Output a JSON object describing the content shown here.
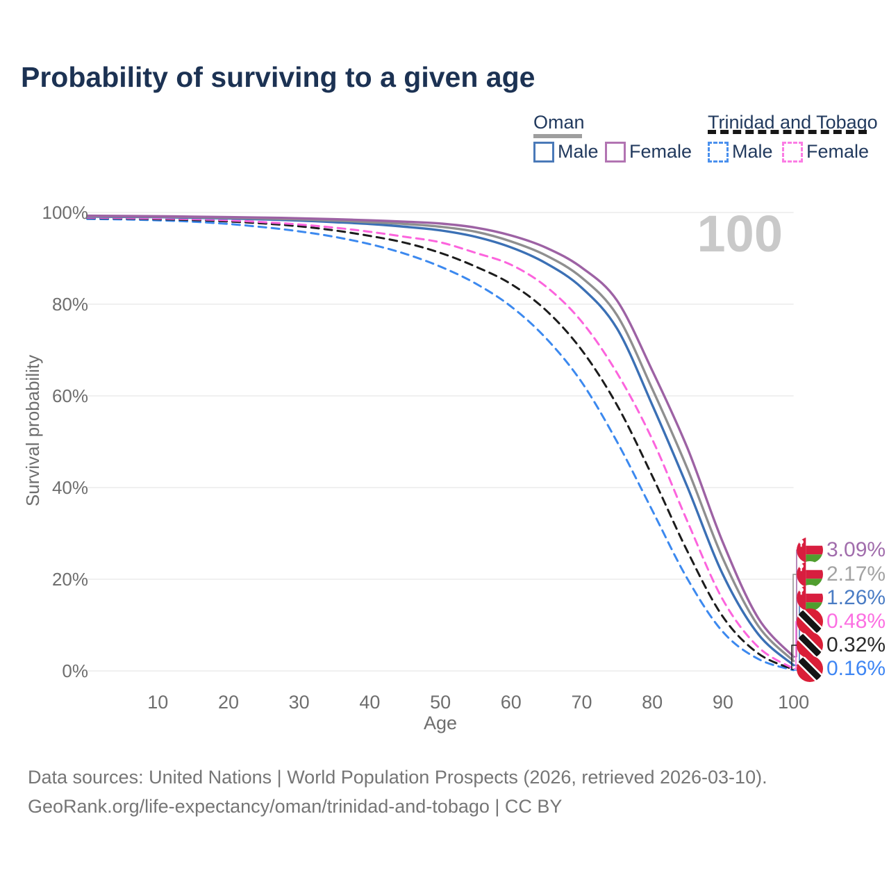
{
  "title": "Probability of surviving to a given age",
  "watermark": "100",
  "legend": {
    "oman": {
      "label": "Oman",
      "male": "Male",
      "female": "Female"
    },
    "tt": {
      "label": "Trinidad and Tobago",
      "male": "Male",
      "female": "Female"
    }
  },
  "axes": {
    "x_label": "Age",
    "y_label": "Survival probability",
    "y_ticks": [
      {
        "label": "100%",
        "value": 100
      },
      {
        "label": "80%",
        "value": 80
      },
      {
        "label": "60%",
        "value": 60
      },
      {
        "label": "40%",
        "value": 40
      },
      {
        "label": "20%",
        "value": 20
      },
      {
        "label": "0%",
        "value": 0
      }
    ],
    "x_ticks": [
      10,
      20,
      30,
      40,
      50,
      60,
      70,
      80,
      90,
      100
    ]
  },
  "chart_data": {
    "type": "line",
    "title": "Probability of surviving to a given age",
    "xlabel": "Age",
    "ylabel": "Survival probability",
    "x_range": [
      0,
      100
    ],
    "y_range_percent": [
      0,
      100
    ],
    "grid": "horizontal-only",
    "legend_position": "top-right",
    "x": [
      0,
      5,
      10,
      15,
      20,
      25,
      30,
      35,
      40,
      45,
      50,
      55,
      60,
      65,
      70,
      75,
      80,
      85,
      90,
      95,
      100
    ],
    "series": [
      {
        "name": "Oman Female",
        "style": "solid",
        "color": "#9d62a4",
        "values": [
          99.3,
          99.25,
          99.2,
          99.1,
          99.0,
          98.9,
          98.75,
          98.55,
          98.3,
          98.0,
          97.6,
          96.7,
          95.0,
          92.3,
          88.0,
          80.8,
          65.5,
          48.5,
          28.0,
          11.5,
          3.09
        ]
      },
      {
        "name": "Oman All",
        "style": "solid",
        "color": "#8f8f8f",
        "values": [
          99.2,
          99.15,
          99.1,
          99.0,
          98.85,
          98.7,
          98.5,
          98.25,
          97.9,
          97.5,
          96.9,
          95.8,
          93.7,
          90.6,
          85.8,
          77.6,
          61.5,
          44.0,
          24.5,
          9.8,
          2.17
        ]
      },
      {
        "name": "Oman Male",
        "style": "solid",
        "color": "#3b70b5",
        "values": [
          99.1,
          99.05,
          99.0,
          98.85,
          98.7,
          98.5,
          98.25,
          97.9,
          97.5,
          96.9,
          96.1,
          94.7,
          92.4,
          88.9,
          83.6,
          74.7,
          58.0,
          40.0,
          21.0,
          8.0,
          1.26
        ]
      },
      {
        "name": "Trinidad and Tobago Female",
        "style": "dashed",
        "color": "#fc64dd",
        "values": [
          98.9,
          98.8,
          98.7,
          98.55,
          98.3,
          97.9,
          97.4,
          96.7,
          95.8,
          94.7,
          93.5,
          91.2,
          88.6,
          83.8,
          76.2,
          65.0,
          50.5,
          32.5,
          15.5,
          5.2,
          0.48
        ]
      },
      {
        "name": "Trinidad and Tobago All",
        "style": "dashed",
        "color": "#1c1c1c",
        "values": [
          98.8,
          98.7,
          98.55,
          98.35,
          98.05,
          97.6,
          97.0,
          96.1,
          94.9,
          93.4,
          91.2,
          88.2,
          84.4,
          78.6,
          70.0,
          58.0,
          42.5,
          26.0,
          11.8,
          3.8,
          0.32
        ]
      },
      {
        "name": "Trinidad and Tobago Male",
        "style": "dashed",
        "color": "#3c89ef",
        "values": [
          98.6,
          98.5,
          98.3,
          98.0,
          97.5,
          96.8,
          95.9,
          94.7,
          93.1,
          91.0,
          88.2,
          84.5,
          79.5,
          72.5,
          63.0,
          50.0,
          35.0,
          20.0,
          8.5,
          2.6,
          0.16
        ]
      }
    ]
  },
  "end_labels": [
    {
      "country": "Oman",
      "series": "Female",
      "value": "3.09%",
      "color": "#a16dac",
      "flag": "oman"
    },
    {
      "country": "Oman",
      "series": "All",
      "value": "2.17%",
      "color": "#a3a3a3",
      "flag": "oman"
    },
    {
      "country": "Oman",
      "series": "Male",
      "value": "1.26%",
      "color": "#4a7cc4",
      "flag": "oman"
    },
    {
      "country": "Trinidad and Tobago",
      "series": "Female",
      "value": "0.48%",
      "color": "#fc6fe2",
      "flag": "tt"
    },
    {
      "country": "Trinidad and Tobago",
      "series": "All",
      "value": "0.32%",
      "color": "#2a2a2a",
      "flag": "tt"
    },
    {
      "country": "Trinidad and Tobago",
      "series": "Male",
      "value": "0.16%",
      "color": "#3f86f3",
      "flag": "tt"
    }
  ],
  "source": {
    "line1": "Data sources: United Nations | World Population Prospects (2026, retrieved 2026-03-10).",
    "line2": "GeoRank.org/life-expectancy/oman/trinidad-and-tobago | CC BY"
  },
  "colors": {
    "title_text": "#1c3253",
    "legend_text": "#223a5e",
    "axis_text": "#6e6e6e",
    "gridline": "#e7e7e7",
    "watermark": "#c9c9c9",
    "oman_underline": "#9e9e9e",
    "tt_underline": "#161616",
    "oman_male_swatch": "#4a79b8",
    "oman_female_swatch": "#b274b2",
    "tt_male_swatch": "#4a90ed",
    "tt_female_swatch": "#fb7ce4"
  }
}
